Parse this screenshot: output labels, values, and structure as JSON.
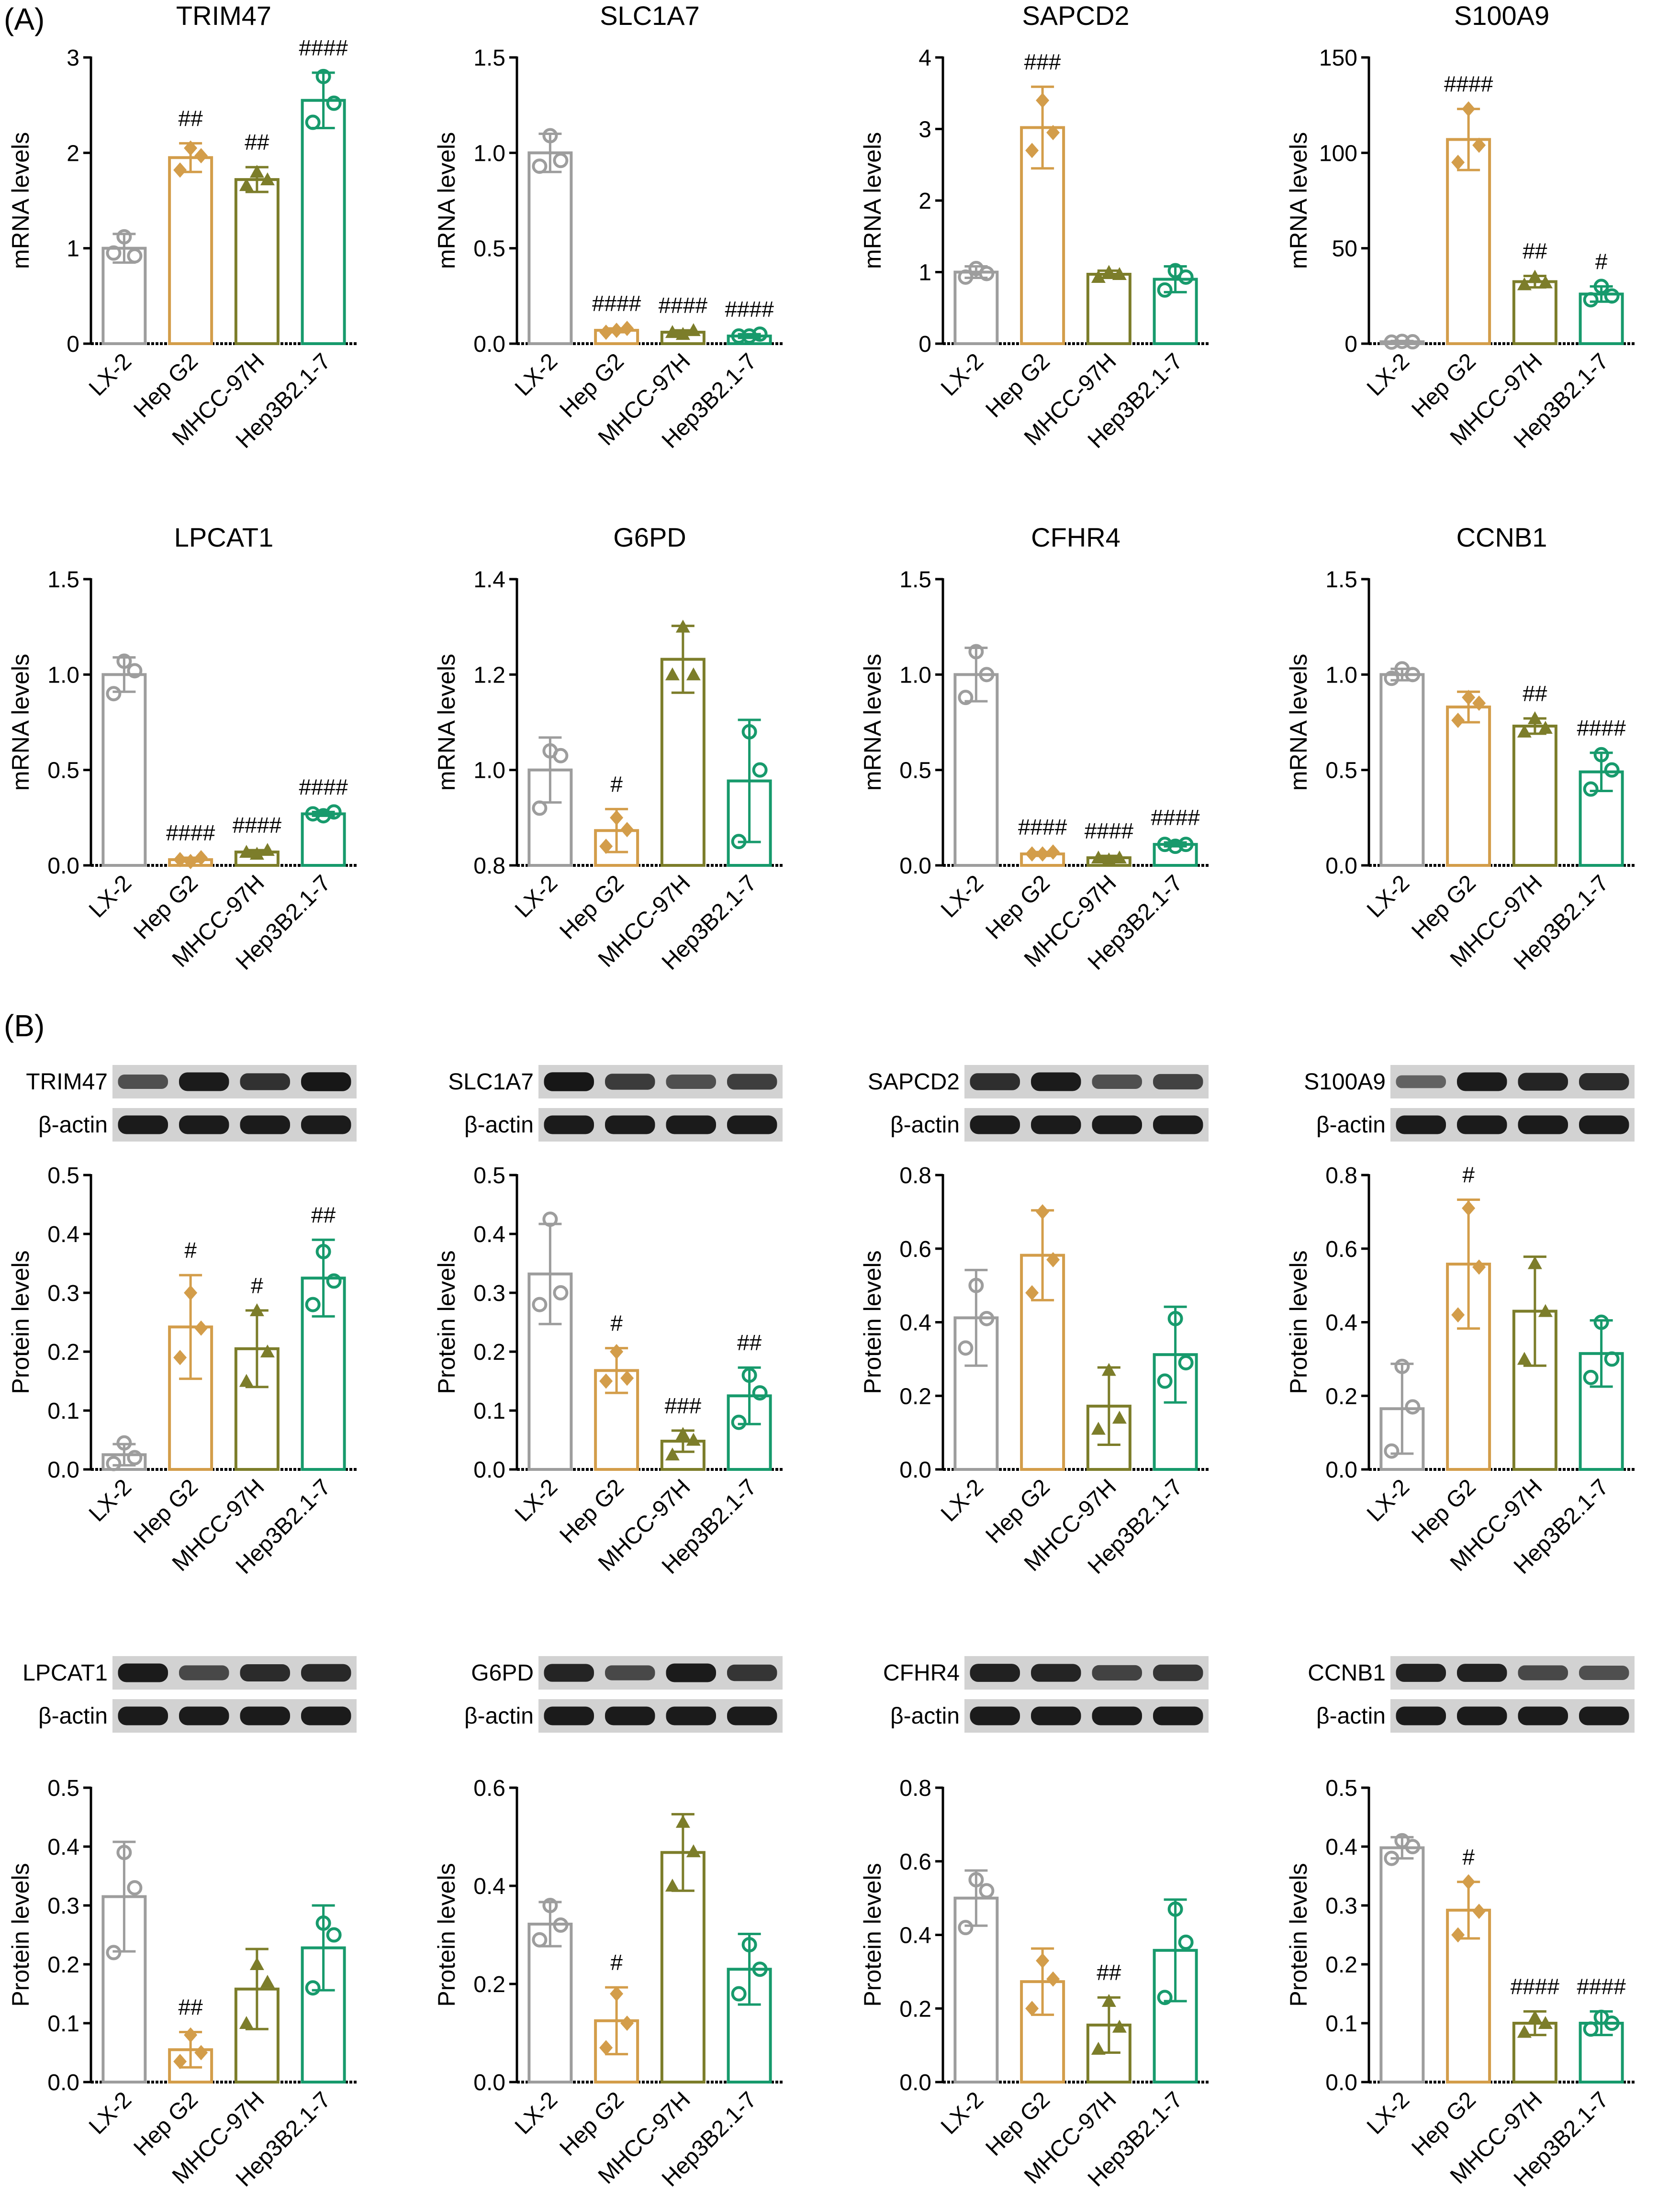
{
  "figure": {
    "panel_labels": [
      "(A)",
      "(B)"
    ],
    "categories": [
      "LX-2",
      "Hep G2",
      "MHCC-97H",
      "Hep3B2.1-7"
    ],
    "colors": {
      "LX-2": "#9d9d9d",
      "Hep G2": "#d39d4a",
      "MHCC-97H": "#7c7d2a",
      "Hep3B2.1-7": "#179a6c"
    },
    "marker_shapes": [
      "circle",
      "diamond",
      "triangle",
      "circle"
    ],
    "blot_loading_label": "β-actin"
  },
  "chart_data": [
    {
      "panel": "A",
      "type": "bar",
      "title": "TRIM47",
      "ylabel": "mRNA levels",
      "ylim": [
        0,
        3
      ],
      "yticks": [
        "0",
        "1",
        "2",
        "3"
      ],
      "categories": [
        "LX-2",
        "Hep G2",
        "MHCC-97H",
        "Hep3B2.1-7"
      ],
      "values": [
        1.0,
        1.95,
        1.72,
        2.55
      ],
      "errors": [
        0.15,
        0.15,
        0.13,
        0.29
      ],
      "points": [
        [
          1.12,
          0.95,
          0.92
        ],
        [
          2.05,
          1.82,
          1.97
        ],
        [
          1.8,
          1.66,
          1.72
        ],
        [
          2.8,
          2.32,
          2.52
        ]
      ],
      "annotations": [
        "",
        "##",
        "##",
        "####"
      ]
    },
    {
      "panel": "A",
      "type": "bar",
      "title": "SLC1A7",
      "ylabel": "mRNA levels",
      "ylim": [
        0,
        1.5
      ],
      "yticks": [
        "0.0",
        "0.5",
        "1.0",
        "1.5"
      ],
      "categories": [
        "LX-2",
        "Hep G2",
        "MHCC-97H",
        "Hep3B2.1-7"
      ],
      "values": [
        1.0,
        0.07,
        0.06,
        0.04
      ],
      "errors": [
        0.1,
        0.01,
        0.01,
        0.01
      ],
      "points": [
        [
          1.09,
          0.93,
          0.96
        ],
        [
          0.07,
          0.06,
          0.08
        ],
        [
          0.05,
          0.06,
          0.07
        ],
        [
          0.04,
          0.04,
          0.05
        ]
      ],
      "annotations": [
        "",
        "####",
        "####",
        "####"
      ]
    },
    {
      "panel": "A",
      "type": "bar",
      "title": "SAPCD2",
      "ylabel": "mRNA levels",
      "ylim": [
        0,
        4
      ],
      "yticks": [
        "0",
        "1",
        "2",
        "3",
        "4"
      ],
      "categories": [
        "LX-2",
        "Hep G2",
        "MHCC-97H",
        "Hep3B2.1-7"
      ],
      "values": [
        1.0,
        3.02,
        0.97,
        0.9
      ],
      "errors": [
        0.08,
        0.57,
        0.05,
        0.18
      ],
      "points": [
        [
          1.05,
          0.93,
          0.98
        ],
        [
          3.4,
          2.7,
          2.95
        ],
        [
          1.0,
          0.93,
          0.97
        ],
        [
          1.02,
          0.75,
          0.93
        ]
      ],
      "annotations": [
        "",
        "###",
        "",
        ""
      ]
    },
    {
      "panel": "A",
      "type": "bar",
      "title": "S100A9",
      "ylabel": "mRNA levels",
      "ylim": [
        0,
        150
      ],
      "yticks": [
        "0",
        "50",
        "100",
        "150"
      ],
      "categories": [
        "LX-2",
        "Hep G2",
        "MHCC-97H",
        "Hep3B2.1-7"
      ],
      "values": [
        1.0,
        107,
        32.5,
        26
      ],
      "errors": [
        0.4,
        16,
        3,
        4
      ],
      "points": [
        [
          1.2,
          0.8,
          1.0
        ],
        [
          123,
          95,
          104
        ],
        [
          35,
          31,
          32
        ],
        [
          30,
          23,
          25
        ]
      ],
      "annotations": [
        "",
        "####",
        "##",
        "#"
      ]
    },
    {
      "panel": "A",
      "type": "bar",
      "title": "LPCAT1",
      "ylabel": "mRNA levels",
      "ylim": [
        0,
        1.5
      ],
      "yticks": [
        "0.0",
        "0.5",
        "1.0",
        "1.5"
      ],
      "categories": [
        "LX-2",
        "Hep G2",
        "MHCC-97H",
        "Hep3B2.1-7"
      ],
      "values": [
        1.0,
        0.03,
        0.07,
        0.27
      ],
      "errors": [
        0.09,
        0.01,
        0.01,
        0.01
      ],
      "points": [
        [
          1.07,
          0.9,
          1.02
        ],
        [
          0.02,
          0.03,
          0.04
        ],
        [
          0.06,
          0.07,
          0.08
        ],
        [
          0.26,
          0.27,
          0.28
        ]
      ],
      "annotations": [
        "",
        "####",
        "####",
        "####"
      ]
    },
    {
      "panel": "A",
      "type": "bar",
      "title": "G6PD",
      "ylabel": "mRNA levels",
      "ylim": [
        0.8,
        1.4
      ],
      "yticks": [
        "0.8",
        "1.0",
        "1.2",
        "1.4"
      ],
      "categories": [
        "LX-2",
        "Hep G2",
        "MHCC-97H",
        "Hep3B2.1-7"
      ],
      "values": [
        1.0,
        0.873,
        1.232,
        0.977
      ],
      "errors": [
        0.068,
        0.045,
        0.07,
        0.128
      ],
      "points": [
        [
          1.04,
          0.92,
          1.03
        ],
        [
          0.9,
          0.84,
          0.875
        ],
        [
          1.3,
          1.2,
          1.2
        ],
        [
          1.08,
          0.85,
          1.0
        ]
      ],
      "annotations": [
        "",
        "#",
        "",
        ""
      ]
    },
    {
      "panel": "A",
      "type": "bar",
      "title": "CFHR4",
      "ylabel": "mRNA levels",
      "ylim": [
        0,
        1.5
      ],
      "yticks": [
        "0.0",
        "0.5",
        "1.0",
        "1.5"
      ],
      "categories": [
        "LX-2",
        "Hep G2",
        "MHCC-97H",
        "Hep3B2.1-7"
      ],
      "values": [
        1.0,
        0.06,
        0.04,
        0.11
      ],
      "errors": [
        0.14,
        0.01,
        0.01,
        0.01
      ],
      "points": [
        [
          1.12,
          0.88,
          1.0
        ],
        [
          0.06,
          0.06,
          0.07
        ],
        [
          0.03,
          0.04,
          0.04
        ],
        [
          0.1,
          0.11,
          0.11
        ]
      ],
      "annotations": [
        "",
        "####",
        "####",
        "####"
      ]
    },
    {
      "panel": "A",
      "type": "bar",
      "title": "CCNB1",
      "ylabel": "mRNA levels",
      "ylim": [
        0,
        1.5
      ],
      "yticks": [
        "0.0",
        "0.5",
        "1.0",
        "1.5"
      ],
      "categories": [
        "LX-2",
        "Hep G2",
        "MHCC-97H",
        "Hep3B2.1-7"
      ],
      "values": [
        1.0,
        0.83,
        0.73,
        0.49
      ],
      "errors": [
        0.03,
        0.08,
        0.04,
        0.1
      ],
      "points": [
        [
          1.03,
          0.98,
          1.0
        ],
        [
          0.88,
          0.76,
          0.85
        ],
        [
          0.77,
          0.7,
          0.72
        ],
        [
          0.58,
          0.4,
          0.5
        ]
      ],
      "annotations": [
        "",
        "",
        "##",
        "####"
      ]
    },
    {
      "panel": "B",
      "type": "bar",
      "title": "TRIM47",
      "ylabel": "Protein levels",
      "ylim": [
        0,
        0.5
      ],
      "yticks": [
        "0.0",
        "0.1",
        "0.2",
        "0.3",
        "0.4",
        "0.5"
      ],
      "categories": [
        "LX-2",
        "Hep G2",
        "MHCC-97H",
        "Hep3B2.1-7"
      ],
      "values": [
        0.025,
        0.242,
        0.205,
        0.325
      ],
      "errors": [
        0.018,
        0.088,
        0.065,
        0.065
      ],
      "points": [
        [
          0.045,
          0.01,
          0.02
        ],
        [
          0.3,
          0.19,
          0.24
        ],
        [
          0.27,
          0.15,
          0.2
        ],
        [
          0.37,
          0.28,
          0.32
        ]
      ],
      "annotations": [
        "",
        "#",
        "#",
        "##"
      ],
      "blot_target_label": "TRIM47",
      "blot_target_intensity": [
        0.55,
        0.95,
        0.78,
        0.98
      ]
    },
    {
      "panel": "B",
      "type": "bar",
      "title": "SLC1A7",
      "ylabel": "Protein levels",
      "ylim": [
        0,
        0.5
      ],
      "yticks": [
        "0.0",
        "0.1",
        "0.2",
        "0.3",
        "0.4",
        "0.5"
      ],
      "categories": [
        "LX-2",
        "Hep G2",
        "MHCC-97H",
        "Hep3B2.1-7"
      ],
      "values": [
        0.332,
        0.168,
        0.048,
        0.125
      ],
      "errors": [
        0.085,
        0.038,
        0.018,
        0.048
      ],
      "points": [
        [
          0.425,
          0.28,
          0.3
        ],
        [
          0.2,
          0.15,
          0.155
        ],
        [
          0.06,
          0.025,
          0.05
        ],
        [
          0.16,
          0.08,
          0.13
        ]
      ],
      "annotations": [
        "",
        "#",
        "###",
        "##"
      ],
      "blot_target_label": "SLC1A7",
      "blot_target_intensity": [
        0.98,
        0.7,
        0.55,
        0.68
      ]
    },
    {
      "panel": "B",
      "type": "bar",
      "title": "SAPCD2",
      "ylabel": "Protein levels",
      "ylim": [
        0,
        0.8
      ],
      "yticks": [
        "0.0",
        "0.2",
        "0.4",
        "0.6",
        "0.8"
      ],
      "categories": [
        "LX-2",
        "Hep G2",
        "MHCC-97H",
        "Hep3B2.1-7"
      ],
      "values": [
        0.412,
        0.582,
        0.172,
        0.312
      ],
      "errors": [
        0.13,
        0.122,
        0.105,
        0.13
      ],
      "points": [
        [
          0.5,
          0.33,
          0.41
        ],
        [
          0.7,
          0.48,
          0.57
        ],
        [
          0.27,
          0.11,
          0.14
        ],
        [
          0.41,
          0.24,
          0.29
        ]
      ],
      "annotations": [
        "",
        "",
        "",
        ""
      ],
      "blot_target_label": "SAPCD2",
      "blot_target_intensity": [
        0.8,
        0.95,
        0.55,
        0.65
      ]
    },
    {
      "panel": "B",
      "type": "bar",
      "title": "S100A9",
      "ylabel": "Protein levels",
      "ylim": [
        0,
        0.8
      ],
      "yticks": [
        "0.0",
        "0.2",
        "0.4",
        "0.6",
        "0.8"
      ],
      "categories": [
        "LX-2",
        "Hep G2",
        "MHCC-97H",
        "Hep3B2.1-7"
      ],
      "values": [
        0.165,
        0.558,
        0.43,
        0.315
      ],
      "errors": [
        0.122,
        0.175,
        0.148,
        0.09
      ],
      "points": [
        [
          0.28,
          0.05,
          0.17
        ],
        [
          0.71,
          0.42,
          0.55
        ],
        [
          0.56,
          0.3,
          0.43
        ],
        [
          0.4,
          0.25,
          0.3
        ]
      ],
      "annotations": [
        "",
        "#",
        "",
        ""
      ],
      "blot_target_label": "S100A9",
      "blot_target_intensity": [
        0.4,
        0.95,
        0.88,
        0.82
      ]
    },
    {
      "panel": "B",
      "type": "bar",
      "title": "LPCAT1",
      "ylabel": "Protein levels",
      "ylim": [
        0,
        0.5
      ],
      "yticks": [
        "0.0",
        "0.1",
        "0.2",
        "0.3",
        "0.4",
        "0.5"
      ],
      "categories": [
        "LX-2",
        "Hep G2",
        "MHCC-97H",
        "Hep3B2.1-7"
      ],
      "values": [
        0.315,
        0.055,
        0.158,
        0.228
      ],
      "errors": [
        0.093,
        0.03,
        0.068,
        0.072
      ],
      "points": [
        [
          0.39,
          0.22,
          0.33
        ],
        [
          0.08,
          0.035,
          0.05
        ],
        [
          0.2,
          0.1,
          0.17
        ],
        [
          0.27,
          0.16,
          0.25
        ]
      ],
      "annotations": [
        "",
        "##",
        "",
        ""
      ],
      "blot_target_label": "LPCAT1",
      "blot_target_intensity": [
        0.95,
        0.6,
        0.82,
        0.85
      ]
    },
    {
      "panel": "B",
      "type": "bar",
      "title": "G6PD",
      "ylabel": "Protein levels",
      "ylim": [
        0,
        0.6
      ],
      "yticks": [
        "0.0",
        "0.2",
        "0.4",
        "0.6"
      ],
      "categories": [
        "LX-2",
        "Hep G2",
        "MHCC-97H",
        "Hep3B2.1-7"
      ],
      "values": [
        0.322,
        0.125,
        0.468,
        0.23
      ],
      "errors": [
        0.045,
        0.068,
        0.078,
        0.072
      ],
      "points": [
        [
          0.36,
          0.29,
          0.32
        ],
        [
          0.18,
          0.07,
          0.12
        ],
        [
          0.53,
          0.4,
          0.47
        ],
        [
          0.28,
          0.18,
          0.23
        ]
      ],
      "annotations": [
        "",
        "#",
        "",
        ""
      ],
      "blot_target_label": "G6PD",
      "blot_target_intensity": [
        0.88,
        0.6,
        0.95,
        0.75
      ]
    },
    {
      "panel": "B",
      "type": "bar",
      "title": "CFHR4",
      "ylabel": "Protein levels",
      "ylim": [
        0,
        0.8
      ],
      "yticks": [
        "0.0",
        "0.2",
        "0.4",
        "0.6",
        "0.8"
      ],
      "categories": [
        "LX-2",
        "Hep G2",
        "MHCC-97H",
        "Hep3B2.1-7"
      ],
      "values": [
        0.5,
        0.273,
        0.155,
        0.358
      ],
      "errors": [
        0.075,
        0.09,
        0.075,
        0.138
      ],
      "points": [
        [
          0.55,
          0.42,
          0.52
        ],
        [
          0.33,
          0.2,
          0.28
        ],
        [
          0.22,
          0.09,
          0.15
        ],
        [
          0.47,
          0.23,
          0.38
        ]
      ],
      "annotations": [
        "",
        "",
        "##",
        ""
      ],
      "blot_target_label": "CFHR4",
      "blot_target_intensity": [
        0.9,
        0.88,
        0.65,
        0.75
      ]
    },
    {
      "panel": "B",
      "type": "bar",
      "title": "CCNB1",
      "ylabel": "Protein levels",
      "ylim": [
        0,
        0.5
      ],
      "yticks": [
        "0.0",
        "0.1",
        "0.2",
        "0.3",
        "0.4",
        "0.5"
      ],
      "categories": [
        "LX-2",
        "Hep G2",
        "MHCC-97H",
        "Hep3B2.1-7"
      ],
      "values": [
        0.398,
        0.292,
        0.1,
        0.1
      ],
      "errors": [
        0.018,
        0.048,
        0.02,
        0.02
      ],
      "points": [
        [
          0.41,
          0.38,
          0.4
        ],
        [
          0.34,
          0.25,
          0.29
        ],
        [
          0.11,
          0.085,
          0.1
        ],
        [
          0.11,
          0.09,
          0.1
        ]
      ],
      "annotations": [
        "",
        "#",
        "####",
        "####"
      ],
      "blot_target_label": "CCNB1",
      "blot_target_intensity": [
        0.9,
        0.9,
        0.6,
        0.55
      ]
    }
  ]
}
